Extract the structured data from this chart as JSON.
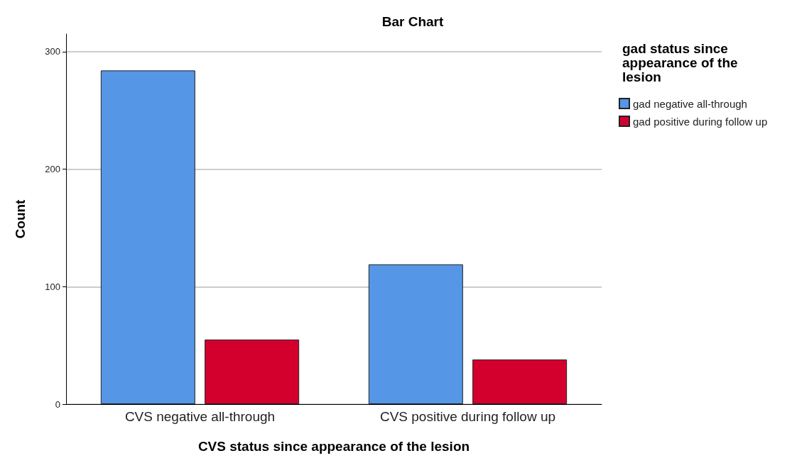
{
  "chart_data": {
    "type": "bar",
    "title": "Bar Chart",
    "xlabel": "CVS status since appearance of the lesion",
    "ylabel": "Count",
    "legend_title": "gad status since appearance of the lesion",
    "categories": [
      "CVS negative all-through",
      "CVS positive during follow up"
    ],
    "series": [
      {
        "name": "gad negative all-through",
        "color": "#5596e6",
        "values": [
          284,
          119
        ]
      },
      {
        "name": "gad positive during follow up",
        "color": "#d3002d",
        "values": [
          55,
          38
        ]
      }
    ],
    "ylim": [
      0,
      315
    ],
    "yticks": [
      0,
      100,
      200,
      300
    ],
    "grid": "y",
    "legend": "top right"
  }
}
